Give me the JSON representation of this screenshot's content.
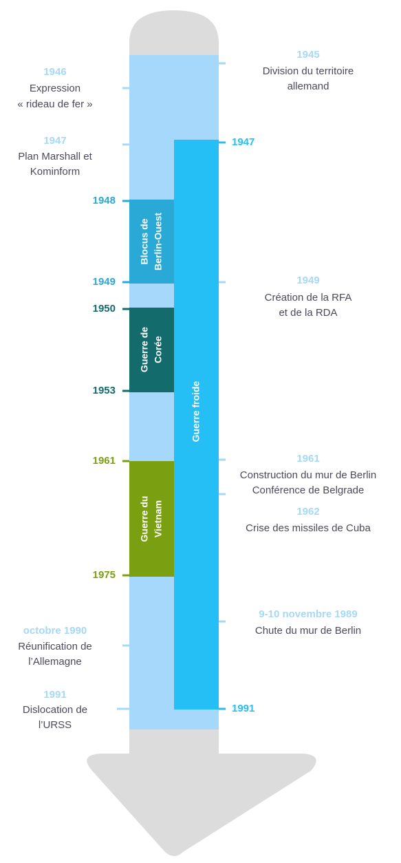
{
  "left_events": [
    {
      "date": "1946",
      "lines": [
        "Expression",
        "« rideau de fer »"
      ]
    },
    {
      "date": "1947",
      "lines": [
        "Plan Marshall et",
        "Kominform"
      ]
    },
    {
      "date": "octobre 1990",
      "lines": [
        "Réunification de",
        "l’Allemagne"
      ]
    },
    {
      "date": "1991",
      "lines": [
        "Dislocation de",
        "l’URSS"
      ]
    }
  ],
  "right_events": [
    {
      "date": "1945",
      "lines": [
        "Division du territoire",
        "allemand"
      ]
    },
    {
      "date": "1949",
      "lines": [
        "Création de la RFA",
        "et de la RDA"
      ]
    },
    {
      "date": "1961",
      "lines": [
        "Construction du mur de Berlin",
        "Conférence de Belgrade"
      ]
    },
    {
      "date": "1962",
      "lines": [
        "Crise des missiles de Cuba"
      ]
    },
    {
      "date": "9-10 novembre 1989",
      "lines": [
        "Chute du mur de Berlin"
      ]
    }
  ],
  "periods": [
    {
      "label_lines": [
        "Blocus de",
        "Berlin-Ouest"
      ],
      "start": "1948",
      "end": "1949"
    },
    {
      "label_lines": [
        "Guerre de",
        "Corée"
      ],
      "start": "1950",
      "end": "1953"
    },
    {
      "label_lines": [
        "Guerre du",
        "Vietnam"
      ],
      "start": "1961",
      "end": "1975"
    }
  ],
  "main_period": {
    "label": "Guerre froide",
    "start": "1947",
    "end": "1991"
  }
}
